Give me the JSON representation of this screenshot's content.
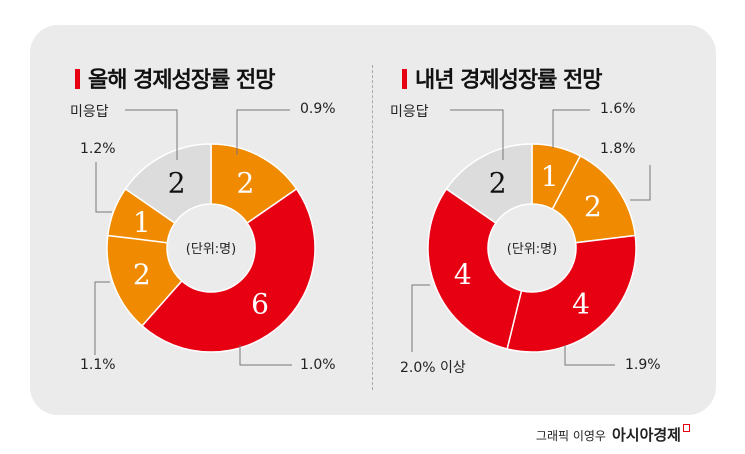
{
  "chart_data": [
    {
      "type": "pie",
      "donut": true,
      "title": "올해 경제성장률 전망",
      "center_label": "(단위:명)",
      "categories": [
        "0.9%",
        "1.0%",
        "1.1%",
        "1.2%",
        "미응답"
      ],
      "values": [
        2,
        6,
        2,
        1,
        2
      ],
      "colors": [
        "#f08a00",
        "#e60012",
        "#f08a00",
        "#f08a00",
        "#dcdcdc"
      ]
    },
    {
      "type": "pie",
      "donut": true,
      "title": "내년 경제성장률 전망",
      "center_label": "(단위:명)",
      "categories": [
        "1.6%",
        "1.8%",
        "1.9%",
        "2.0% 이상",
        "미응답"
      ],
      "values": [
        1,
        2,
        4,
        4,
        2
      ],
      "colors": [
        "#f08a00",
        "#f08a00",
        "#e60012",
        "#e60012",
        "#dcdcdc"
      ]
    }
  ],
  "credit": {
    "text": "그래픽 이영우",
    "brand": "아시아경제"
  }
}
